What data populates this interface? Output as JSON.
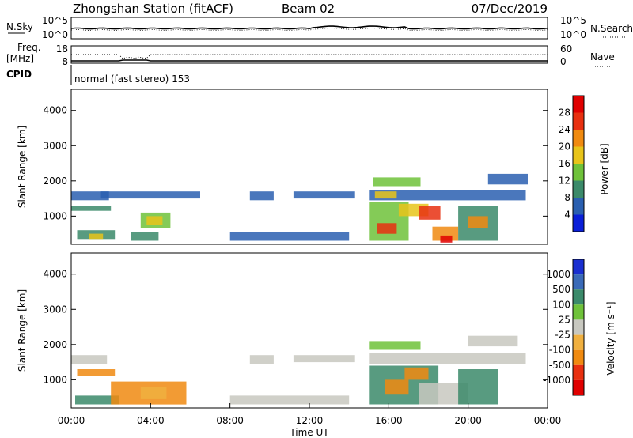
{
  "header": {
    "station": "Zhongshan Station (fitACF)",
    "beam": "Beam 02",
    "date": "07/Dec/2019"
  },
  "panels": {
    "noise": {
      "left_label": "N.Sky",
      "right_label": "N.Search",
      "left_ticks": [
        "10^5",
        "10^0"
      ],
      "right_ticks": [
        "10^5",
        "10^0"
      ]
    },
    "freq": {
      "left_label_1": "Freq.",
      "left_label_2": "[MHz]",
      "right_label": "Nave",
      "left_ticks": [
        "18",
        "8"
      ],
      "right_ticks": [
        "60",
        "0"
      ]
    },
    "cpid": {
      "label": "CPID",
      "text": "normal (fast stereo) 153"
    }
  },
  "chart_data": [
    {
      "type": "heatmap",
      "name": "power",
      "ylabel": "Slant Range [km]",
      "ylim": [
        200,
        4600
      ],
      "yticks": [
        "1000",
        "2000",
        "3000",
        "4000"
      ],
      "colorbar_label": "Power [dB]",
      "colorbar_ticks": [
        "4",
        "8",
        "12",
        "16",
        "20",
        "24",
        "28"
      ],
      "colors": [
        "#0a1fd8",
        "#2a5fb0",
        "#3b8a6a",
        "#6fc23a",
        "#e8c41a",
        "#f08a10",
        "#e83010",
        "#e00000"
      ],
      "regions": [
        {
          "t0": 0.0,
          "t1": 1.9,
          "r0": 1450,
          "r1": 1700,
          "c": 1
        },
        {
          "t0": 0.0,
          "t1": 2.0,
          "r0": 1150,
          "r1": 1300,
          "c": 2
        },
        {
          "t0": 0.3,
          "t1": 2.2,
          "r0": 350,
          "r1": 600,
          "c": 2
        },
        {
          "t0": 0.9,
          "t1": 1.6,
          "r0": 350,
          "r1": 500,
          "c": 4
        },
        {
          "t0": 3.0,
          "t1": 4.4,
          "r0": 300,
          "r1": 550,
          "c": 2
        },
        {
          "t0": 3.5,
          "t1": 5.0,
          "r0": 650,
          "r1": 1100,
          "c": 3
        },
        {
          "t0": 3.8,
          "t1": 4.6,
          "r0": 750,
          "r1": 1000,
          "c": 4
        },
        {
          "t0": 1.5,
          "t1": 6.5,
          "r0": 1500,
          "r1": 1700,
          "c": 1
        },
        {
          "t0": 9.0,
          "t1": 10.2,
          "r0": 1450,
          "r1": 1700,
          "c": 1
        },
        {
          "t0": 11.2,
          "t1": 14.3,
          "r0": 1500,
          "r1": 1700,
          "c": 1
        },
        {
          "t0": 8.0,
          "t1": 14.0,
          "r0": 300,
          "r1": 550,
          "c": 1
        },
        {
          "t0": 15.0,
          "t1": 22.9,
          "r0": 1450,
          "r1": 1750,
          "c": 1
        },
        {
          "t0": 15.3,
          "t1": 16.4,
          "r0": 1500,
          "r1": 1700,
          "c": 4
        },
        {
          "t0": 15.2,
          "t1": 17.6,
          "r0": 1850,
          "r1": 2100,
          "c": 3
        },
        {
          "t0": 15.0,
          "t1": 17.0,
          "r0": 300,
          "r1": 1400,
          "c": 3
        },
        {
          "t0": 15.4,
          "t1": 16.4,
          "r0": 500,
          "r1": 800,
          "c": 6
        },
        {
          "t0": 16.5,
          "t1": 18.0,
          "r0": 1000,
          "r1": 1350,
          "c": 4
        },
        {
          "t0": 17.5,
          "t1": 18.6,
          "r0": 900,
          "r1": 1300,
          "c": 6
        },
        {
          "t0": 18.2,
          "t1": 19.5,
          "r0": 300,
          "r1": 700,
          "c": 5
        },
        {
          "t0": 18.6,
          "t1": 19.2,
          "r0": 250,
          "r1": 450,
          "c": 7
        },
        {
          "t0": 19.5,
          "t1": 21.5,
          "r0": 300,
          "r1": 1300,
          "c": 2
        },
        {
          "t0": 20.0,
          "t1": 21.0,
          "r0": 650,
          "r1": 1000,
          "c": 5
        },
        {
          "t0": 21.0,
          "t1": 23.0,
          "r0": 1900,
          "r1": 2200,
          "c": 1
        }
      ]
    },
    {
      "type": "heatmap",
      "name": "velocity",
      "ylabel": "Slant Range [km]",
      "xlabel": "Time UT",
      "ylim": [
        200,
        4600
      ],
      "yticks": [
        "1000",
        "2000",
        "3000",
        "4000"
      ],
      "xticks": [
        "00:00",
        "04:00",
        "08:00",
        "12:00",
        "16:00",
        "20:00",
        "00:00"
      ],
      "colorbar_label": "Velocity [m s⁻¹]",
      "colorbar_ticks": [
        "1000",
        "500",
        "100",
        "25",
        "-25",
        "-100",
        "-500",
        "-1000"
      ],
      "colors": [
        "#1a2fd0",
        "#3a6ab8",
        "#3b8a6a",
        "#6fc23a",
        "#c8c8c0",
        "#f0b040",
        "#f08a10",
        "#e83010",
        "#e00000"
      ],
      "regions": [
        {
          "t0": 0.0,
          "t1": 1.8,
          "r0": 1450,
          "r1": 1700,
          "c": 4
        },
        {
          "t0": 0.3,
          "t1": 2.2,
          "r0": 1100,
          "r1": 1300,
          "c": 6
        },
        {
          "t0": 0.2,
          "t1": 2.4,
          "r0": 300,
          "r1": 550,
          "c": 2
        },
        {
          "t0": 2.0,
          "t1": 5.8,
          "r0": 300,
          "r1": 950,
          "c": 6
        },
        {
          "t0": 3.5,
          "t1": 4.8,
          "r0": 450,
          "r1": 800,
          "c": 5
        },
        {
          "t0": 8.0,
          "t1": 14.0,
          "r0": 300,
          "r1": 550,
          "c": 4
        },
        {
          "t0": 9.0,
          "t1": 10.2,
          "r0": 1450,
          "r1": 1700,
          "c": 4
        },
        {
          "t0": 11.2,
          "t1": 14.3,
          "r0": 1500,
          "r1": 1700,
          "c": 4
        },
        {
          "t0": 15.0,
          "t1": 17.6,
          "r0": 1850,
          "r1": 2100,
          "c": 3
        },
        {
          "t0": 15.0,
          "t1": 22.9,
          "r0": 1450,
          "r1": 1750,
          "c": 4
        },
        {
          "t0": 15.0,
          "t1": 18.5,
          "r0": 300,
          "r1": 1400,
          "c": 2
        },
        {
          "t0": 15.8,
          "t1": 17.0,
          "r0": 600,
          "r1": 1000,
          "c": 6
        },
        {
          "t0": 16.8,
          "t1": 18.0,
          "r0": 1000,
          "r1": 1350,
          "c": 6
        },
        {
          "t0": 17.5,
          "t1": 20.0,
          "r0": 300,
          "r1": 900,
          "c": 4
        },
        {
          "t0": 19.5,
          "t1": 21.5,
          "r0": 300,
          "r1": 1300,
          "c": 2
        },
        {
          "t0": 20.0,
          "t1": 22.5,
          "r0": 1950,
          "r1": 2250,
          "c": 4
        }
      ]
    }
  ]
}
